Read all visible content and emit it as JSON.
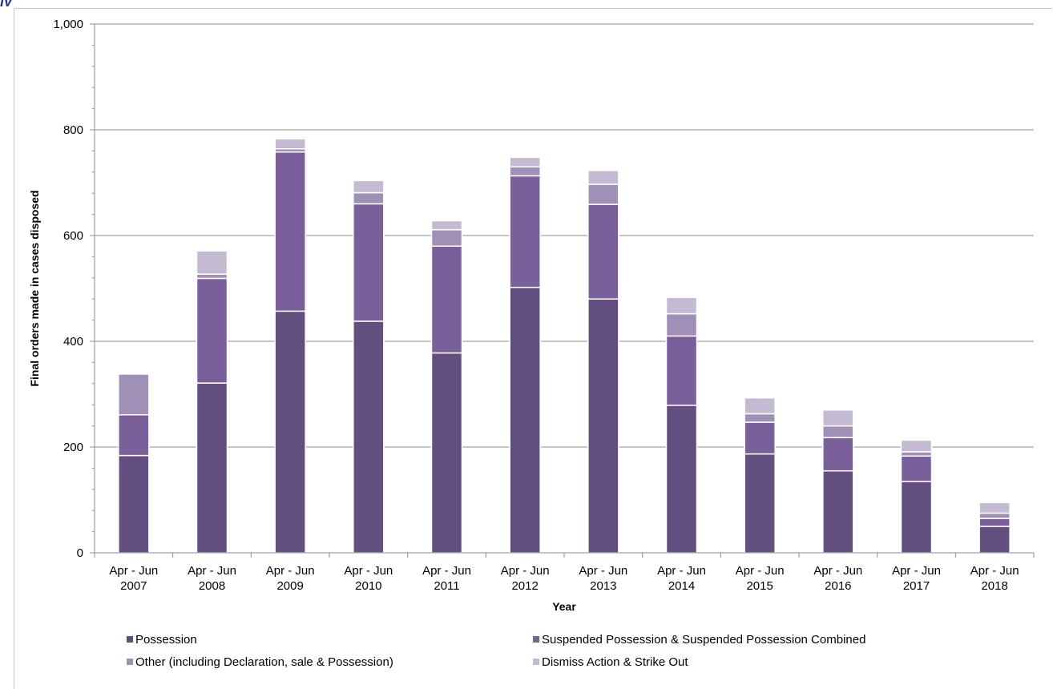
{
  "chart_data": {
    "type": "bar",
    "stacked": true,
    "title": "",
    "xlabel": "Year",
    "ylabel": "Final orders made in cases disposed",
    "ylim": [
      0,
      1000
    ],
    "yticks": [
      "0",
      "200",
      "400",
      "600",
      "800",
      "1,000"
    ],
    "grid": true,
    "legend_position": "bottom",
    "categories": [
      [
        "Apr - Jun",
        "2007"
      ],
      [
        "Apr - Jun",
        "2008"
      ],
      [
        "Apr - Jun",
        "2009"
      ],
      [
        "Apr - Jun",
        "2010"
      ],
      [
        "Apr - Jun",
        "2011"
      ],
      [
        "Apr - Jun",
        "2012"
      ],
      [
        "Apr - Jun",
        "2013"
      ],
      [
        "Apr - Jun",
        "2014"
      ],
      [
        "Apr - Jun",
        "2015"
      ],
      [
        "Apr - Jun",
        "2016"
      ],
      [
        "Apr - Jun",
        "2017"
      ],
      [
        "Apr - Jun",
        "2018"
      ]
    ],
    "series": [
      {
        "name": "Possession",
        "color": "#634e80",
        "values": [
          184,
          321,
          457,
          438,
          378,
          502,
          480,
          279,
          187,
          155,
          135,
          50
        ]
      },
      {
        "name": "Suspended Possession & Suspended Possession Combined",
        "color": "#7b5f9b",
        "values": [
          77,
          198,
          301,
          222,
          202,
          211,
          179,
          131,
          60,
          63,
          48,
          15
        ]
      },
      {
        "name": "Other (including Declaration, sale & Possession)",
        "color": "#a08fb6",
        "values": [
          77,
          8,
          6,
          21,
          31,
          17,
          38,
          42,
          16,
          22,
          8,
          10
        ]
      },
      {
        "name": "Dismiss Action & Strike Out",
        "color": "#c4bbd3",
        "values": [
          0,
          44,
          19,
          23,
          17,
          18,
          26,
          31,
          30,
          30,
          22,
          20
        ]
      }
    ]
  },
  "title_fragment": "ly"
}
